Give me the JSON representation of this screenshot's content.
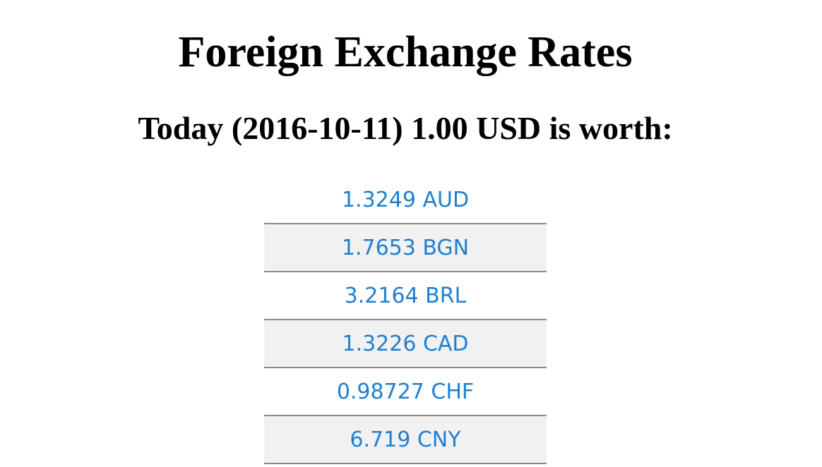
{
  "header": {
    "title": "Foreign Exchange Rates",
    "subtitle": "Today (2016-10-11) 1.00 USD is worth:"
  },
  "rates": [
    {
      "label": "1.3249 AUD"
    },
    {
      "label": "1.7653 BGN"
    },
    {
      "label": "3.2164 BRL"
    },
    {
      "label": "1.3226 CAD"
    },
    {
      "label": "0.98727 CHF"
    },
    {
      "label": "6.719 CNY"
    }
  ],
  "colors": {
    "link": "#1f7fcf",
    "alt_row": "#f1f1f1",
    "divider": "#8a8a8a"
  }
}
